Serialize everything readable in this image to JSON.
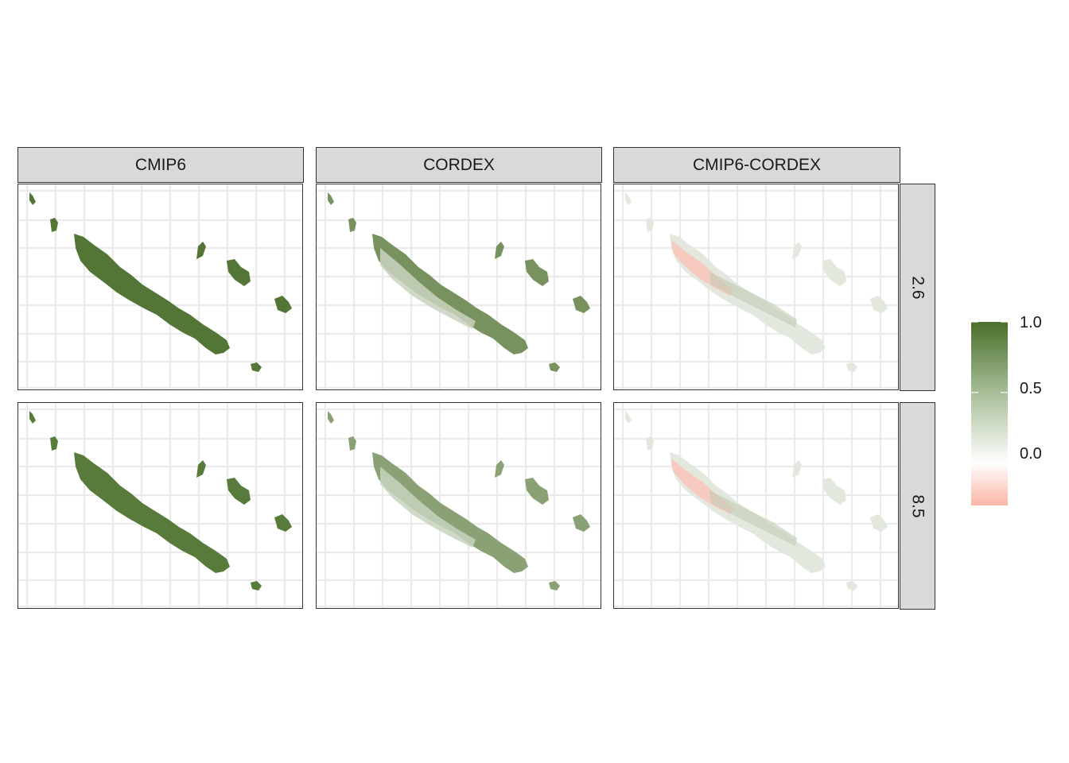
{
  "columns": [
    "CMIP6",
    "CORDEX",
    "CMIP6-CORDEX"
  ],
  "rows": [
    "2.6",
    "8.5"
  ],
  "panels": [
    {
      "column": "CMIP6",
      "row": "2.6",
      "value": 0.95
    },
    {
      "column": "CORDEX",
      "row": "2.6",
      "value": 0.75
    },
    {
      "column": "CMIP6-CORDEX",
      "row": "2.6",
      "value": 0.1
    },
    {
      "column": "CMIP6",
      "row": "8.5",
      "value": 0.92
    },
    {
      "column": "CORDEX",
      "row": "8.5",
      "value": 0.65
    },
    {
      "column": "CMIP6-CORDEX",
      "row": "8.5",
      "value": 0.2
    }
  ],
  "legend": {
    "breaks": [
      "1.0",
      "0.5",
      "0.0"
    ],
    "range": [
      -0.3,
      1.0
    ],
    "colors": {
      "high": "#4a6e2a",
      "mid": "#ffffff",
      "low": "#fbb5a5"
    }
  },
  "colors": {
    "strip_fill": "#d9d9d9",
    "grid": "#ebebeb",
    "border": "#333333",
    "diff_negative": "#f8c7bc",
    "diff_base": "#e3e8df"
  }
}
